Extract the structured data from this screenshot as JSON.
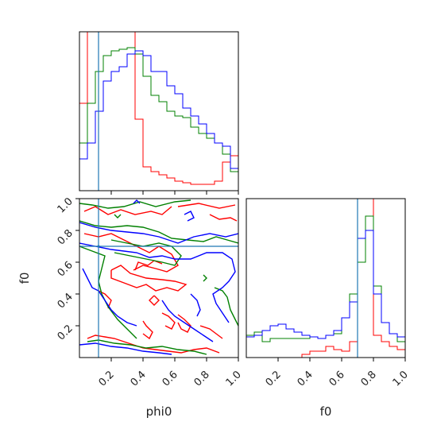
{
  "chart_data": {
    "type": "corner",
    "parameters": [
      "phi0",
      "f0"
    ],
    "range": [
      0.0,
      1.0
    ],
    "truth": {
      "phi0": 0.12,
      "f0": 0.7
    },
    "series": [
      {
        "color": "#ff0000"
      },
      {
        "color": "#008000"
      },
      {
        "color": "#0000ff"
      }
    ],
    "colors": {
      "truth_line": "#1f77b4",
      "axes": "#000000"
    },
    "xlabels": [
      "phi0",
      "f0"
    ],
    "ylabels": [
      "",
      "f0"
    ],
    "tick_labels": [
      "0.2",
      "0.4",
      "0.6",
      "0.8",
      "1.0"
    ],
    "histograms": {
      "phi0": {
        "bin_edges": [
          0.0,
          0.05,
          0.1,
          0.15,
          0.2,
          0.25,
          0.3,
          0.35,
          0.4,
          0.45,
          0.5,
          0.55,
          0.6,
          0.65,
          0.7,
          0.75,
          0.8,
          0.85,
          0.9,
          0.95,
          1.0
        ],
        "ymax": 1.0,
        "red": [
          0.55,
          1.0,
          1.0,
          1.0,
          1.0,
          1.0,
          1.0,
          0.45,
          0.15,
          0.12,
          0.1,
          0.08,
          0.06,
          0.05,
          0.04,
          0.04,
          0.04,
          0.06,
          0.18,
          0.22
        ],
        "green": [
          0.3,
          0.55,
          0.75,
          0.85,
          0.88,
          0.89,
          0.9,
          0.86,
          0.72,
          0.6,
          0.56,
          0.5,
          0.47,
          0.46,
          0.4,
          0.36,
          0.33,
          0.3,
          0.23,
          0.12
        ],
        "blue": [
          0.2,
          0.3,
          0.5,
          0.69,
          0.75,
          0.78,
          0.86,
          0.88,
          0.85,
          0.75,
          0.75,
          0.66,
          0.61,
          0.52,
          0.47,
          0.42,
          0.36,
          0.3,
          0.28,
          0.14
        ]
      },
      "f0": {
        "bin_edges": [
          0.0,
          0.05,
          0.1,
          0.15,
          0.2,
          0.25,
          0.3,
          0.35,
          0.4,
          0.45,
          0.5,
          0.55,
          0.6,
          0.65,
          0.7,
          0.75,
          0.8,
          0.85,
          0.9,
          0.95,
          1.0
        ],
        "ymax": 1.0,
        "red": [
          0.0,
          0.0,
          0.0,
          0.0,
          0.0,
          0.0,
          0.0,
          0.02,
          0.04,
          0.04,
          0.07,
          0.05,
          0.04,
          0.1,
          1.0,
          1.0,
          0.14,
          0.1,
          0.07,
          0.05
        ],
        "green": [
          0.14,
          0.16,
          0.1,
          0.12,
          0.12,
          0.12,
          0.12,
          0.12,
          0.13,
          0.12,
          0.14,
          0.15,
          0.25,
          0.4,
          0.6,
          0.89,
          0.45,
          0.22,
          0.15,
          0.1
        ],
        "blue": [
          0.13,
          0.14,
          0.17,
          0.2,
          0.21,
          0.18,
          0.16,
          0.14,
          0.13,
          0.12,
          0.14,
          0.17,
          0.25,
          0.35,
          0.75,
          0.8,
          0.4,
          0.22,
          0.15,
          0.13
        ]
      }
    },
    "contours_phi0_f0": {
      "red": [
        [
          [
            0.03,
            0.92
          ],
          [
            0.1,
            0.95
          ],
          [
            0.18,
            0.9
          ],
          [
            0.26,
            0.93
          ],
          [
            0.35,
            0.9
          ],
          [
            0.45,
            0.92
          ],
          [
            0.52,
            0.9
          ],
          [
            0.58,
            0.95
          ]
        ],
        [
          [
            0.62,
            0.95
          ],
          [
            0.75,
            0.97
          ],
          [
            0.88,
            0.94
          ],
          [
            0.98,
            0.96
          ]
        ],
        [
          [
            0.82,
            0.9
          ],
          [
            0.88,
            0.87
          ],
          [
            0.95,
            0.88
          ],
          [
            0.99,
            0.86
          ]
        ],
        [
          [
            0.03,
            0.78
          ],
          [
            0.12,
            0.76
          ],
          [
            0.2,
            0.78
          ],
          [
            0.28,
            0.74
          ],
          [
            0.36,
            0.7
          ],
          [
            0.44,
            0.66
          ],
          [
            0.5,
            0.7
          ],
          [
            0.58,
            0.65
          ],
          [
            0.62,
            0.58
          ],
          [
            0.55,
            0.54
          ],
          [
            0.48,
            0.56
          ],
          [
            0.4,
            0.58
          ],
          [
            0.34,
            0.55
          ]
        ],
        [
          [
            0.2,
            0.55
          ],
          [
            0.26,
            0.58
          ],
          [
            0.32,
            0.53
          ],
          [
            0.42,
            0.5
          ],
          [
            0.52,
            0.49
          ],
          [
            0.6,
            0.48
          ],
          [
            0.67,
            0.46
          ],
          [
            0.62,
            0.42
          ],
          [
            0.55,
            0.44
          ],
          [
            0.48,
            0.42
          ],
          [
            0.42,
            0.46
          ],
          [
            0.36,
            0.44
          ],
          [
            0.28,
            0.47
          ],
          [
            0.2,
            0.5
          ],
          [
            0.2,
            0.55
          ]
        ],
        [
          [
            0.35,
            0.55
          ],
          [
            0.37,
            0.6
          ],
          [
            0.43,
            0.58
          ],
          [
            0.47,
            0.61
          ],
          [
            0.52,
            0.59
          ]
        ],
        [
          [
            0.47,
            0.39
          ],
          [
            0.5,
            0.36
          ],
          [
            0.47,
            0.33
          ],
          [
            0.44,
            0.36
          ],
          [
            0.47,
            0.39
          ]
        ],
        [
          [
            0.12,
            0.42
          ],
          [
            0.16,
            0.4
          ],
          [
            0.2,
            0.36
          ],
          [
            0.18,
            0.31
          ]
        ],
        [
          [
            0.4,
            0.23
          ],
          [
            0.42,
            0.2
          ],
          [
            0.46,
            0.16
          ],
          [
            0.44,
            0.12
          ],
          [
            0.4,
            0.15
          ]
        ],
        [
          [
            0.52,
            0.28
          ],
          [
            0.56,
            0.26
          ],
          [
            0.6,
            0.22
          ],
          [
            0.58,
            0.18
          ],
          [
            0.54,
            0.2
          ]
        ],
        [
          [
            0.62,
            0.27
          ],
          [
            0.66,
            0.24
          ],
          [
            0.7,
            0.2
          ],
          [
            0.68,
            0.16
          ],
          [
            0.64,
            0.18
          ],
          [
            0.62,
            0.22
          ]
        ],
        [
          [
            0.76,
            0.2
          ],
          [
            0.82,
            0.18
          ],
          [
            0.86,
            0.15
          ],
          [
            0.9,
            0.12
          ]
        ],
        [
          [
            0.05,
            0.12
          ],
          [
            0.1,
            0.14
          ],
          [
            0.16,
            0.13
          ],
          [
            0.22,
            0.12
          ],
          [
            0.28,
            0.1
          ],
          [
            0.34,
            0.08
          ],
          [
            0.4,
            0.06
          ],
          [
            0.48,
            0.05
          ],
          [
            0.56,
            0.04
          ],
          [
            0.64,
            0.03
          ],
          [
            0.72,
            0.05
          ],
          [
            0.8,
            0.06
          ],
          [
            0.88,
            0.03
          ]
        ]
      ],
      "green": [
        [
          [
            0.0,
            0.97
          ],
          [
            0.08,
            0.96
          ],
          [
            0.18,
            0.94
          ],
          [
            0.28,
            0.95
          ],
          [
            0.38,
            0.98
          ],
          [
            0.48,
            0.95
          ],
          [
            0.6,
            0.98
          ],
          [
            0.7,
            0.99
          ]
        ],
        [
          [
            0.0,
            0.86
          ],
          [
            0.1,
            0.83
          ],
          [
            0.2,
            0.82
          ],
          [
            0.3,
            0.83
          ],
          [
            0.4,
            0.82
          ],
          [
            0.5,
            0.79
          ],
          [
            0.58,
            0.75
          ],
          [
            0.68,
            0.74
          ],
          [
            0.78,
            0.73
          ],
          [
            0.86,
            0.76
          ],
          [
            0.93,
            0.74
          ],
          [
            1.0,
            0.72
          ]
        ],
        [
          [
            0.0,
            0.7
          ],
          [
            0.08,
            0.67
          ],
          [
            0.16,
            0.64
          ],
          [
            0.14,
            0.56
          ],
          [
            0.12,
            0.48
          ],
          [
            0.14,
            0.4
          ],
          [
            0.18,
            0.32
          ],
          [
            0.24,
            0.24
          ],
          [
            0.3,
            0.18
          ],
          [
            0.36,
            0.12
          ]
        ],
        [
          [
            0.2,
            0.74
          ],
          [
            0.3,
            0.72
          ],
          [
            0.4,
            0.7
          ],
          [
            0.5,
            0.72
          ],
          [
            0.58,
            0.7
          ],
          [
            0.64,
            0.64
          ],
          [
            0.6,
            0.58
          ],
          [
            0.52,
            0.6
          ],
          [
            0.42,
            0.62
          ],
          [
            0.32,
            0.64
          ],
          [
            0.22,
            0.66
          ]
        ],
        [
          [
            0.78,
            0.52
          ],
          [
            0.8,
            0.5
          ],
          [
            0.78,
            0.48
          ]
        ],
        [
          [
            0.85,
            0.44
          ],
          [
            0.9,
            0.42
          ],
          [
            0.93,
            0.38
          ],
          [
            0.95,
            0.3
          ],
          [
            0.98,
            0.24
          ],
          [
            1.0,
            0.2
          ]
        ],
        [
          [
            0.05,
            0.1
          ],
          [
            0.12,
            0.11
          ],
          [
            0.22,
            0.09
          ],
          [
            0.32,
            0.08
          ],
          [
            0.42,
            0.06
          ],
          [
            0.52,
            0.07
          ],
          [
            0.62,
            0.05
          ],
          [
            0.72,
            0.04
          ],
          [
            0.8,
            0.02
          ]
        ],
        [
          [
            0.22,
            0.9
          ],
          [
            0.24,
            0.88
          ],
          [
            0.26,
            0.9
          ]
        ]
      ],
      "blue": [
        [
          [
            0.0,
            0.85
          ],
          [
            0.1,
            0.82
          ],
          [
            0.2,
            0.8
          ],
          [
            0.3,
            0.79
          ],
          [
            0.4,
            0.78
          ],
          [
            0.5,
            0.76
          ],
          [
            0.56,
            0.74
          ],
          [
            0.62,
            0.72
          ],
          [
            0.72,
            0.76
          ],
          [
            0.82,
            0.78
          ],
          [
            0.92,
            0.76
          ],
          [
            1.0,
            0.78
          ]
        ],
        [
          [
            0.0,
            0.72
          ],
          [
            0.1,
            0.7
          ],
          [
            0.2,
            0.68
          ],
          [
            0.28,
            0.67
          ],
          [
            0.36,
            0.66
          ],
          [
            0.44,
            0.63
          ],
          [
            0.52,
            0.64
          ],
          [
            0.6,
            0.62
          ],
          [
            0.7,
            0.62
          ],
          [
            0.8,
            0.66
          ],
          [
            0.9,
            0.66
          ],
          [
            0.96,
            0.62
          ],
          [
            0.98,
            0.54
          ],
          [
            0.94,
            0.48
          ],
          [
            0.9,
            0.44
          ],
          [
            0.84,
            0.4
          ],
          [
            0.86,
            0.34
          ],
          [
            0.9,
            0.28
          ],
          [
            0.94,
            0.22
          ]
        ],
        [
          [
            0.02,
            0.56
          ],
          [
            0.05,
            0.5
          ],
          [
            0.08,
            0.44
          ],
          [
            0.12,
            0.42
          ],
          [
            0.16,
            0.36
          ],
          [
            0.2,
            0.3
          ],
          [
            0.24,
            0.26
          ],
          [
            0.3,
            0.22
          ],
          [
            0.36,
            0.2
          ]
        ],
        [
          [
            0.34,
            0.97
          ],
          [
            0.36,
            0.99
          ],
          [
            0.38,
            0.97
          ]
        ],
        [
          [
            0.66,
            0.9
          ],
          [
            0.7,
            0.92
          ],
          [
            0.72,
            0.88
          ],
          [
            0.68,
            0.86
          ]
        ],
        [
          [
            0.52,
            0.36
          ],
          [
            0.56,
            0.3
          ],
          [
            0.6,
            0.26
          ],
          [
            0.66,
            0.22
          ],
          [
            0.72,
            0.18
          ],
          [
            0.78,
            0.14
          ],
          [
            0.84,
            0.1
          ]
        ],
        [
          [
            0.0,
            0.08
          ],
          [
            0.1,
            0.09
          ],
          [
            0.2,
            0.07
          ],
          [
            0.3,
            0.06
          ],
          [
            0.4,
            0.04
          ],
          [
            0.5,
            0.03
          ],
          [
            0.58,
            0.02
          ]
        ],
        [
          [
            0.7,
            0.4
          ],
          [
            0.74,
            0.36
          ],
          [
            0.76,
            0.3
          ],
          [
            0.74,
            0.26
          ]
        ]
      ]
    }
  }
}
